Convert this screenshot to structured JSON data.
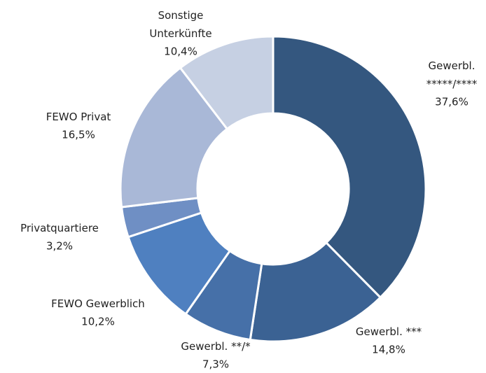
{
  "chart_data": {
    "type": "donut",
    "categories": [
      "Gewerbl.\n*****/****",
      "Gewerbl. ***",
      "Gewerbl. **/*",
      "FEWO Gewerblich",
      "Privatquartiere",
      "FEWO Privat",
      "Sonstige\nUnterkünfte"
    ],
    "values": [
      37.6,
      14.8,
      7.3,
      10.2,
      3.2,
      16.5,
      10.4
    ],
    "value_labels": [
      "37,6%",
      "14,8%",
      "7,3%",
      "10,2%",
      "3,2%",
      "16,5%",
      "10,4%"
    ],
    "colors": [
      "#34577f",
      "#3b6293",
      "#4670a8",
      "#4f80c0",
      "#6f8fc4",
      "#a9b8d7",
      "#c6d0e3"
    ]
  }
}
